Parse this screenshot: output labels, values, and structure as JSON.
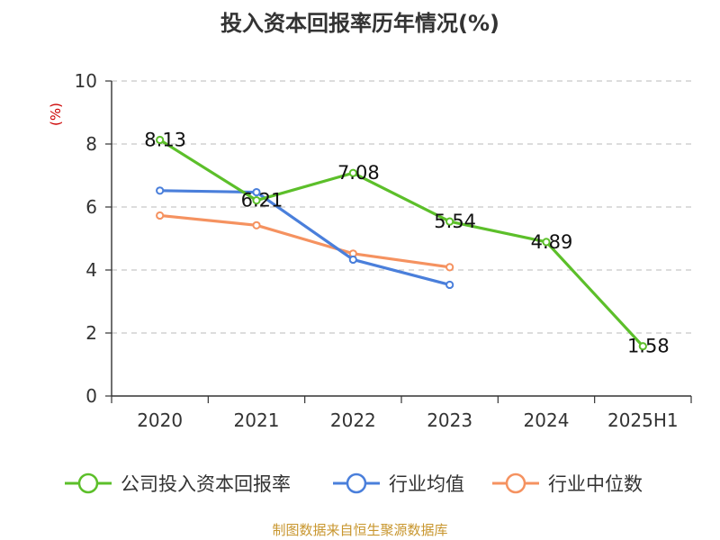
{
  "chart_data": {
    "type": "line",
    "title": "投入资本回报率历年情况(%)",
    "ylabel": "(%)",
    "xlabel": "",
    "categories": [
      "2020",
      "2021",
      "2022",
      "2023",
      "2024",
      "2025H1"
    ],
    "ylim": [
      0,
      10
    ],
    "yticks": [
      0,
      2,
      4,
      6,
      8,
      10
    ],
    "grid": "horizontal-dashed",
    "legend_position": "bottom",
    "series": [
      {
        "name": "公司投入资本回报率",
        "color": "#5cbf2a",
        "values": [
          8.13,
          6.21,
          7.08,
          5.54,
          4.89,
          1.58
        ],
        "data_labels": [
          "8.13",
          "6.21",
          "7.08",
          "5.54",
          "4.89",
          "1.58"
        ]
      },
      {
        "name": "行业均值",
        "color": "#4a7fdb",
        "values": [
          6.52,
          6.47,
          4.33,
          3.53,
          null,
          null
        ]
      },
      {
        "name": "行业中位数",
        "color": "#f59260",
        "values": [
          5.73,
          5.42,
          4.52,
          4.09,
          null,
          null
        ]
      }
    ]
  },
  "footer": {
    "source": "制图数据来自恒生聚源数据库"
  }
}
